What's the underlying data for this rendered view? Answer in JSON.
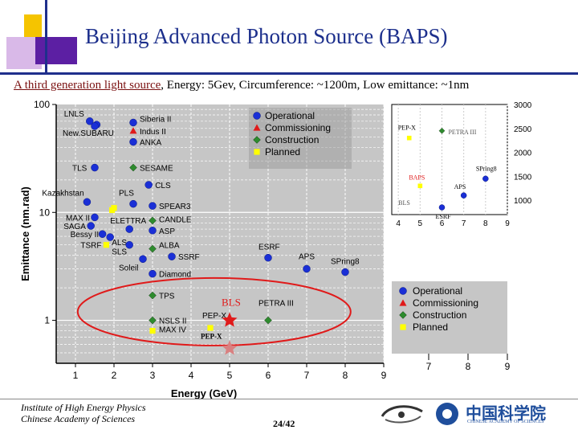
{
  "slide": {
    "title": "Beijing Advanced Photon Source (BAPS)",
    "subtitle_lead": "A third generation light source",
    "subtitle_rest": ", Energy: 5Gev, Circumference: ~1200m, Low emittance: ~1nm",
    "institute_line1": "Institute of High Energy Physics",
    "institute_line2": "Chinese Academy of Sciences",
    "page": "24/42",
    "cas_logo_text": "中国科学院",
    "cas_logo_sub": "CHINESE ACADEMY OF SCIENCES"
  },
  "colors": {
    "title": "#1c2f8c",
    "operational": "#1a2fd6",
    "commissioning": "#e01a1a",
    "construction": "#2e8b2e",
    "planned": "#ffff00",
    "plot_bg": "#c6c6c6"
  },
  "chart_data": {
    "type": "scatter",
    "xlabel": "Energy (GeV)",
    "ylabel": "Emittance (nm.rad)",
    "xlim": [
      0.5,
      9
    ],
    "ylim": [
      0.4,
      100
    ],
    "yscale": "log",
    "xticks": [
      "1",
      "2",
      "3",
      "4",
      "5",
      "6",
      "7",
      "8",
      "9"
    ],
    "yticks": [
      "1",
      "10",
      "100"
    ],
    "legend": {
      "position": "top-right",
      "entries": [
        "Operational",
        "Commissioning",
        "Construction",
        "Planned"
      ]
    },
    "series": [
      {
        "name": "Operational",
        "marker": "circle",
        "points": [
          {
            "label": "LNLS",
            "x": 1.37,
            "y": 70
          },
          {
            "label": "",
            "x": 1.55,
            "y": 65
          },
          {
            "label": "New.SUBARU",
            "x": 1.5,
            "y": 63
          },
          {
            "label": "Siberia II",
            "x": 2.5,
            "y": 68
          },
          {
            "label": "ANKA",
            "x": 2.5,
            "y": 45
          },
          {
            "label": "TLS",
            "x": 1.5,
            "y": 26
          },
          {
            "label": "CLS",
            "x": 2.9,
            "y": 18
          },
          {
            "label": "Kazakhstan",
            "x": 1.3,
            "y": 12.5
          },
          {
            "label": "PLS",
            "x": 2.5,
            "y": 12
          },
          {
            "label": "SPEAR3",
            "x": 3.0,
            "y": 11.5
          },
          {
            "label": "MAX II",
            "x": 1.5,
            "y": 9
          },
          {
            "label": "SAGA",
            "x": 1.4,
            "y": 7.5
          },
          {
            "label": "Bessy II",
            "x": 1.7,
            "y": 6.3
          },
          {
            "label": "ALS",
            "x": 1.9,
            "y": 5.9
          },
          {
            "label": "ASP",
            "x": 3.0,
            "y": 6.8
          },
          {
            "label": "ELETTRA",
            "x": 2.4,
            "y": 7.0
          },
          {
            "label": "SLS",
            "x": 2.4,
            "y": 5.0
          },
          {
            "label": "SSRF",
            "x": 3.5,
            "y": 3.9
          },
          {
            "label": "Soleil",
            "x": 2.75,
            "y": 3.7
          },
          {
            "label": "Diamond",
            "x": 3.0,
            "y": 2.7
          },
          {
            "label": "ESRF",
            "x": 6.0,
            "y": 3.8
          },
          {
            "label": "APS",
            "x": 7.0,
            "y": 3.0
          },
          {
            "label": "SPring8",
            "x": 8.0,
            "y": 2.8
          }
        ]
      },
      {
        "name": "Commissioning",
        "marker": "triangle",
        "points": [
          {
            "label": "Indus II",
            "x": 2.5,
            "y": 57
          }
        ]
      },
      {
        "name": "Construction",
        "marker": "diamond",
        "points": [
          {
            "label": "SESAME",
            "x": 2.5,
            "y": 26
          },
          {
            "label": "CANDLE",
            "x": 3.0,
            "y": 8.4
          },
          {
            "label": "ALBA",
            "x": 3.0,
            "y": 4.6
          },
          {
            "label": "TPS",
            "x": 3.0,
            "y": 1.7
          },
          {
            "label": "NSLS II",
            "x": 3.0,
            "y": 1.0
          },
          {
            "label": "PETRA III",
            "x": 6.0,
            "y": 1.0
          }
        ]
      },
      {
        "name": "Planned",
        "marker": "square",
        "points": [
          {
            "label": "",
            "x": 1.95,
            "y": 10.5
          },
          {
            "label": "",
            "x": 2.0,
            "y": 11
          },
          {
            "label": "TSRF",
            "x": 1.8,
            "y": 5.0
          },
          {
            "label": "MAX IV",
            "x": 3.0,
            "y": 0.8
          },
          {
            "label": "PEP-X",
            "x": 4.5,
            "y": 0.85
          }
        ]
      }
    ],
    "annotations": [
      {
        "label": "BLS",
        "x": 5.0,
        "y": 1.0,
        "marker": "star",
        "color": "#e01a1a"
      },
      {
        "label": "PEP-X",
        "x": 5.0,
        "y": 0.55,
        "marker": "star",
        "color": "#d98080"
      }
    ],
    "inset": {
      "xticks": [
        "4",
        "5",
        "6",
        "7",
        "8",
        "9"
      ],
      "yticks": [
        "3000",
        "2500",
        "2000",
        "1500",
        "1000"
      ],
      "labels": [
        "PEP-X",
        "PETRA III",
        "SPring8",
        "BAPS",
        "APS",
        "ESRF",
        "BLS"
      ],
      "points": [
        {
          "label": "PEP-X",
          "x": 4.5,
          "y": 2300,
          "series": "Planned"
        },
        {
          "label": "PETRA III",
          "x": 6.0,
          "y": 2450,
          "series": "Construction"
        },
        {
          "label": "SPring8",
          "x": 8.0,
          "y": 1450,
          "series": "Operational"
        },
        {
          "label": "BAPS",
          "x": 5.0,
          "y": 1300,
          "series": "Planned"
        },
        {
          "label": "APS",
          "x": 7.0,
          "y": 1100,
          "series": "Operational"
        },
        {
          "label": "ESRF",
          "x": 6.0,
          "y": 850,
          "series": "Operational"
        }
      ],
      "bottom_ticks": [
        "7",
        "8",
        "9"
      ]
    }
  }
}
